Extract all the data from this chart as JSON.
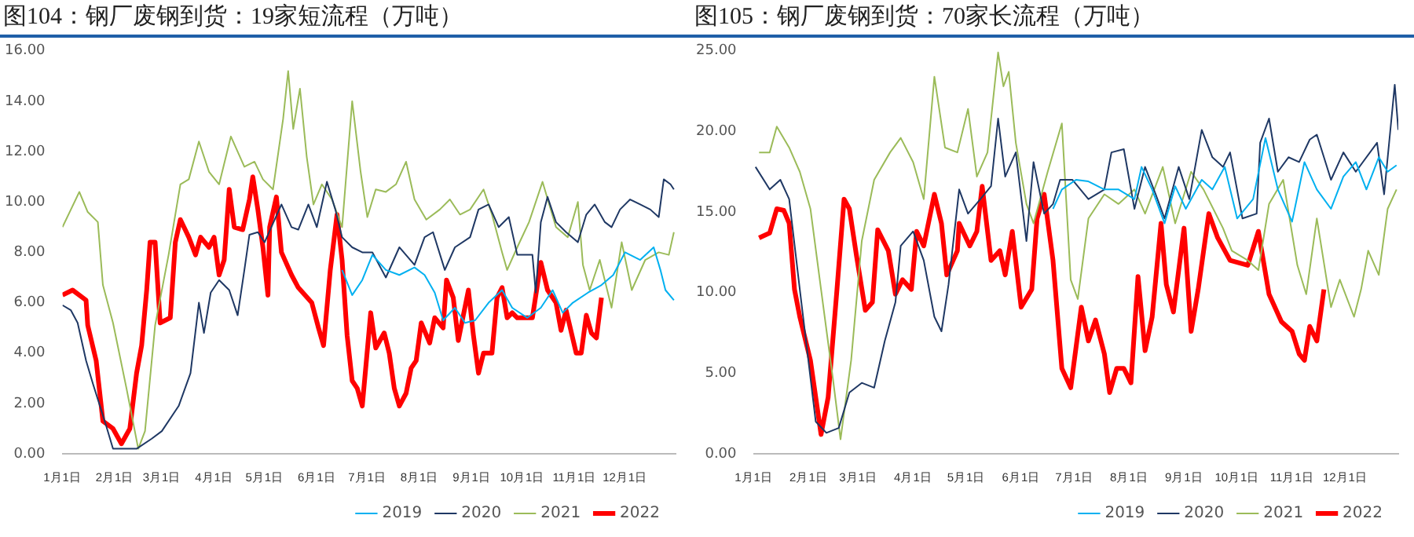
{
  "chart_data": [
    {
      "type": "line",
      "title": "图104：钢厂废钢到货：19家短流程（万吨）",
      "xlim": [
        "--01-01",
        "--12-31"
      ],
      "xticks": [
        {
          "value": "--01-01",
          "label": "1月1日"
        },
        {
          "value": "--02-01",
          "label": "2月1日"
        },
        {
          "value": "--03-01",
          "label": "3月1日"
        },
        {
          "value": "--04-01",
          "label": "4月1日"
        },
        {
          "value": "--05-01",
          "label": "5月1日"
        },
        {
          "value": "--06-01",
          "label": "6月1日"
        },
        {
          "value": "--07-01",
          "label": "7月1日"
        },
        {
          "value": "--08-01",
          "label": "8月1日"
        },
        {
          "value": "--09-01",
          "label": "9月1日"
        },
        {
          "value": "--10-01",
          "label": "10月1日"
        },
        {
          "value": "--11-01",
          "label": "11月1日"
        },
        {
          "value": "--12-01",
          "label": "12月1日"
        }
      ],
      "ylim": [
        0,
        16
      ],
      "yticks": [
        {
          "value": 0,
          "label": "0.00"
        },
        {
          "value": 2,
          "label": "2.00"
        },
        {
          "value": 4,
          "label": "4.00"
        },
        {
          "value": 6,
          "label": "6.00"
        },
        {
          "value": 8,
          "label": "8.00"
        },
        {
          "value": 10,
          "label": "10.00"
        },
        {
          "value": 12,
          "label": "12.00"
        },
        {
          "value": 14,
          "label": "14.00"
        },
        {
          "value": 16,
          "label": "16.00"
        }
      ],
      "grid": false,
      "legend": "bottom right",
      "marker": "none",
      "line_style": "solid",
      "series": [
        {
          "name": "2019",
          "color": "#00b0f0",
          "x": [
            "--06-16",
            "--06-22",
            "--06-28",
            "--07-04",
            "--07-12",
            "--07-20",
            "--07-29",
            "--08-04",
            "--08-10",
            "--08-15",
            "--08-22",
            "--08-28",
            "--09-03",
            "--09-11",
            "--09-19",
            "--09-25",
            "--10-04",
            "--10-12",
            "--10-19",
            "--10-25",
            "--10-31",
            "--11-09",
            "--11-17",
            "--11-24",
            "--12-01",
            "--12-10",
            "--12-18",
            "--12-22",
            "--12-25",
            "--12-30"
          ],
          "values": [
            7.3,
            6.3,
            6.9,
            7.9,
            7.3,
            7.1,
            7.4,
            7.1,
            6.4,
            5.3,
            5.8,
            5.2,
            5.3,
            6.0,
            6.5,
            5.8,
            5.4,
            5.8,
            6.5,
            5.6,
            6.0,
            6.4,
            6.7,
            7.1,
            8.0,
            7.7,
            8.2,
            7.3,
            6.5,
            6.1
          ]
        },
        {
          "name": "2020",
          "color": "#1f3864",
          "x": [
            "--01-01",
            "--01-06",
            "--01-10",
            "--01-15",
            "--01-19",
            "--01-27",
            "--01-31",
            "--02-07",
            "--02-14",
            "--02-23",
            "--03-01",
            "--03-11",
            "--03-18",
            "--03-23",
            "--03-26",
            "--03-30",
            "--04-04",
            "--04-10",
            "--04-15",
            "--04-19",
            "--04-22",
            "--04-27",
            "--05-01",
            "--05-11",
            "--05-17",
            "--05-21",
            "--05-27",
            "--06-01",
            "--06-07",
            "--06-12",
            "--06-16",
            "--06-22",
            "--06-28",
            "--07-04",
            "--07-12",
            "--07-20",
            "--07-29",
            "--08-04",
            "--08-09",
            "--08-16",
            "--08-22",
            "--08-31",
            "--09-05",
            "--09-11",
            "--09-17",
            "--09-23",
            "--09-28",
            "--10-07",
            "--10-09",
            "--10-12",
            "--10-16",
            "--10-21",
            "--10-27",
            "--11-03",
            "--11-08",
            "--11-13",
            "--11-19",
            "--11-23",
            "--11-28",
            "--12-04",
            "--12-10",
            "--12-16",
            "--12-21",
            "--12-24",
            "--12-28",
            "--12-30"
          ],
          "values": [
            5.9,
            5.7,
            5.2,
            3.7,
            2.8,
            1.1,
            0.2,
            0.2,
            0.2,
            0.6,
            0.9,
            1.9,
            3.2,
            6.0,
            4.8,
            6.4,
            6.9,
            6.5,
            5.5,
            7.3,
            8.7,
            8.8,
            8.4,
            9.9,
            9.0,
            8.9,
            9.9,
            9.0,
            10.8,
            9.7,
            8.6,
            8.2,
            8.0,
            8.0,
            7.0,
            8.2,
            7.5,
            8.6,
            8.8,
            7.3,
            8.2,
            8.6,
            9.7,
            9.9,
            9.0,
            9.4,
            7.9,
            7.9,
            6.4,
            9.2,
            10.2,
            9.2,
            8.8,
            8.4,
            9.5,
            9.9,
            9.2,
            9.0,
            9.7,
            10.1,
            9.9,
            9.7,
            9.4,
            10.9,
            10.7,
            10.5
          ]
        },
        {
          "name": "2021",
          "color": "#9bbb59",
          "x": [
            "--01-01",
            "--01-06",
            "--01-11",
            "--01-16",
            "--01-22",
            "--01-25",
            "--01-31",
            "--02-08",
            "--02-15",
            "--02-19",
            "--02-25",
            "--03-05",
            "--03-12",
            "--03-17",
            "--03-23",
            "--03-29",
            "--04-04",
            "--04-11",
            "--04-19",
            "--04-25",
            "--04-30",
            "--05-06",
            "--05-12",
            "--05-15",
            "--05-18",
            "--05-22",
            "--05-26",
            "--05-30",
            "--06-04",
            "--06-10",
            "--06-16",
            "--06-22",
            "--06-27",
            "--07-01",
            "--07-06",
            "--07-12",
            "--07-18",
            "--07-24",
            "--07-29",
            "--08-05",
            "--08-13",
            "--08-19",
            "--08-25",
            "--08-31",
            "--09-08",
            "--09-13",
            "--09-19",
            "--09-22",
            "--09-28",
            "--10-05",
            "--10-13",
            "--10-21",
            "--10-28",
            "--11-03",
            "--11-06",
            "--11-10",
            "--11-16",
            "--11-23",
            "--11-29",
            "--12-05",
            "--12-13",
            "--12-21",
            "--12-27",
            "--12-30"
          ],
          "values": [
            9.0,
            9.7,
            10.4,
            9.6,
            9.2,
            6.7,
            5.2,
            2.6,
            0.2,
            0.9,
            5.1,
            7.9,
            10.7,
            10.9,
            12.4,
            11.2,
            10.7,
            12.6,
            11.4,
            11.6,
            10.9,
            10.5,
            13.3,
            15.2,
            12.9,
            14.5,
            11.8,
            9.9,
            10.7,
            10.1,
            9.0,
            14.0,
            11.2,
            9.4,
            10.5,
            10.4,
            10.7,
            11.6,
            10.1,
            9.3,
            9.7,
            10.1,
            9.5,
            9.7,
            10.5,
            9.5,
            8.0,
            7.3,
            8.2,
            9.2,
            10.8,
            9.0,
            8.6,
            10.0,
            7.5,
            6.5,
            7.7,
            5.8,
            8.4,
            6.5,
            7.7,
            8.0,
            7.9,
            8.8
          ]
        },
        {
          "name": "2022",
          "color": "#ff0000",
          "x": [
            "--01-01",
            "--01-07",
            "--01-15",
            "--01-16",
            "--01-21",
            "--01-25",
            "--01-31",
            "--02-05",
            "--02-10",
            "--02-14",
            "--02-17",
            "--02-20",
            "--02-22",
            "--02-25",
            "--02-28",
            "--03-06",
            "--03-09",
            "--03-12",
            "--03-17",
            "--03-21",
            "--03-24",
            "--03-29",
            "--04-01",
            "--04-04",
            "--04-07",
            "--04-10",
            "--04-13",
            "--04-18",
            "--04-22",
            "--04-24",
            "--04-27",
            "--04-30",
            "--05-03",
            "--05-04",
            "--05-08",
            "--05-11",
            "--05-17",
            "--05-21",
            "--05-29",
            "--06-02",
            "--06-05",
            "--06-09",
            "--06-13",
            "--06-16",
            "--06-19",
            "--06-22",
            "--06-25",
            "--06-28",
            "--07-03",
            "--07-06",
            "--07-11",
            "--07-14",
            "--07-17",
            "--07-20",
            "--07-24",
            "--07-27",
            "--07-30",
            "--08-02",
            "--08-07",
            "--08-10",
            "--08-15",
            "--08-17",
            "--08-21",
            "--08-24",
            "--08-30",
            "--09-02",
            "--09-05",
            "--09-08",
            "--09-13",
            "--09-16",
            "--09-19",
            "--09-22",
            "--09-25",
            "--09-28",
            "--10-07",
            "--10-12",
            "--10-16",
            "--10-21",
            "--10-24",
            "--10-27",
            "--11-02",
            "--11-05",
            "--11-08",
            "--11-11",
            "--11-14",
            "--11-17"
          ],
          "values": [
            6.3,
            6.5,
            6.1,
            5.1,
            3.7,
            1.3,
            1.0,
            0.4,
            1.0,
            3.2,
            4.3,
            6.5,
            8.4,
            8.4,
            5.2,
            5.4,
            8.4,
            9.3,
            8.6,
            7.9,
            8.6,
            8.2,
            8.6,
            7.1,
            7.7,
            10.5,
            9.0,
            8.9,
            10.1,
            11.0,
            9.7,
            8.2,
            6.3,
            9.0,
            10.2,
            8.0,
            7.1,
            6.6,
            6.0,
            5.0,
            4.3,
            7.3,
            9.5,
            7.7,
            4.7,
            2.9,
            2.6,
            1.9,
            5.6,
            4.2,
            4.8,
            4.0,
            2.6,
            1.9,
            2.4,
            3.4,
            3.7,
            5.2,
            4.4,
            5.4,
            5.0,
            6.9,
            6.2,
            4.5,
            6.5,
            4.7,
            3.2,
            4.0,
            4.0,
            6.2,
            6.6,
            5.4,
            5.6,
            5.4,
            5.4,
            7.6,
            6.5,
            6.0,
            4.9,
            5.7,
            4.0,
            4.0,
            5.5,
            4.8,
            4.6,
            6.2
          ]
        }
      ]
    },
    {
      "type": "line",
      "title": "图105：钢厂废钢到货：70家长流程（万吨）",
      "xlim": [
        "--01-01",
        "--12-31"
      ],
      "xticks": [
        {
          "value": "--01-01",
          "label": "1月1日"
        },
        {
          "value": "--02-01",
          "label": "2月1日"
        },
        {
          "value": "--03-01",
          "label": "3月1日"
        },
        {
          "value": "--04-01",
          "label": "4月1日"
        },
        {
          "value": "--05-01",
          "label": "5月1日"
        },
        {
          "value": "--06-01",
          "label": "6月1日"
        },
        {
          "value": "--07-01",
          "label": "7月1日"
        },
        {
          "value": "--08-01",
          "label": "8月1日"
        },
        {
          "value": "--09-01",
          "label": "9月1日"
        },
        {
          "value": "--10-01",
          "label": "10月1日"
        },
        {
          "value": "--11-01",
          "label": "11月1日"
        },
        {
          "value": "--12-01",
          "label": "12月1日"
        }
      ],
      "ylim": [
        0,
        25
      ],
      "yticks": [
        {
          "value": 0,
          "label": "0.00"
        },
        {
          "value": 5,
          "label": "5.00"
        },
        {
          "value": 10,
          "label": "10.00"
        },
        {
          "value": 15,
          "label": "15.00"
        },
        {
          "value": 20,
          "label": "20.00"
        },
        {
          "value": 25,
          "label": "25.00"
        }
      ],
      "grid": false,
      "legend": "bottom right",
      "marker": "none",
      "line_style": "solid",
      "series": [
        {
          "name": "2019",
          "color": "#00b0f0",
          "x": [
            "--06-19",
            "--06-24",
            "--07-02",
            "--07-09",
            "--07-18",
            "--07-26",
            "--08-04",
            "--08-08",
            "--08-14",
            "--08-21",
            "--08-27",
            "--09-02",
            "--09-11",
            "--09-17",
            "--09-24",
            "--10-01",
            "--10-10",
            "--10-17",
            "--10-24",
            "--11-01",
            "--11-08",
            "--11-15",
            "--11-23",
            "--11-30",
            "--12-07",
            "--12-13",
            "--12-20",
            "--12-25",
            "--12-30"
          ],
          "values": [
            15.2,
            16.4,
            17.0,
            16.9,
            16.4,
            16.4,
            15.8,
            17.8,
            16.4,
            14.3,
            16.6,
            15.2,
            17.0,
            16.4,
            17.8,
            14.6,
            15.8,
            19.6,
            16.4,
            14.4,
            18.1,
            16.4,
            15.2,
            17.2,
            18.1,
            16.4,
            18.4,
            17.5,
            17.9
          ]
        },
        {
          "name": "2020",
          "color": "#1f3864",
          "x": [
            "--01-02",
            "--01-10",
            "--01-16",
            "--01-21",
            "--01-27",
            "--02-05",
            "--02-11",
            "--02-18",
            "--02-24",
            "--03-03",
            "--03-10",
            "--03-16",
            "--03-22",
            "--03-25",
            "--04-01",
            "--04-07",
            "--04-13",
            "--04-17",
            "--04-21",
            "--04-27",
            "--05-02",
            "--05-09",
            "--05-15",
            "--05-19",
            "--05-23",
            "--05-29",
            "--06-04",
            "--06-08",
            "--06-14",
            "--06-19",
            "--06-23",
            "--06-30",
            "--07-09",
            "--07-18",
            "--07-22",
            "--07-29",
            "--08-04",
            "--08-10",
            "--08-16",
            "--08-21",
            "--08-29",
            "--09-04",
            "--09-11",
            "--09-17",
            "--09-23",
            "--09-27",
            "--10-04",
            "--10-12",
            "--10-14",
            "--10-19",
            "--10-24",
            "--10-30",
            "--11-05",
            "--11-11",
            "--11-15",
            "--11-23",
            "--11-30",
            "--12-07",
            "--12-19",
            "--12-23",
            "--12-29",
            "--12-31"
          ],
          "values": [
            17.8,
            16.4,
            17.0,
            15.8,
            10.2,
            2.0,
            1.3,
            1.6,
            3.8,
            4.4,
            4.1,
            7.0,
            9.4,
            12.9,
            13.8,
            12.0,
            8.5,
            7.6,
            10.5,
            16.4,
            14.9,
            15.8,
            16.6,
            20.8,
            17.2,
            18.7,
            13.2,
            18.1,
            14.9,
            15.5,
            17.0,
            17.0,
            15.8,
            16.4,
            18.7,
            18.9,
            15.2,
            17.8,
            16.1,
            14.6,
            17.8,
            15.8,
            20.1,
            18.4,
            17.8,
            18.7,
            14.6,
            14.9,
            19.3,
            20.8,
            17.5,
            18.4,
            18.1,
            19.5,
            19.8,
            17.0,
            18.7,
            17.5,
            19.3,
            16.1,
            22.9,
            20.1
          ]
        },
        {
          "name": "2021",
          "color": "#9bbb59",
          "x": [
            "--01-04",
            "--01-10",
            "--01-14",
            "--01-21",
            "--01-27",
            "--02-02",
            "--02-08",
            "--02-15",
            "--02-19",
            "--02-25",
            "--03-03",
            "--03-10",
            "--03-19",
            "--03-25",
            "--04-01",
            "--04-07",
            "--04-13",
            "--04-19",
            "--04-26",
            "--05-02",
            "--05-07",
            "--05-13",
            "--05-19",
            "--05-22",
            "--05-25",
            "--05-29",
            "--06-04",
            "--06-08",
            "--06-16",
            "--06-24",
            "--06-29",
            "--07-03",
            "--07-09",
            "--07-18",
            "--07-26",
            "--08-04",
            "--08-10",
            "--08-20",
            "--08-27",
            "--09-05",
            "--09-12",
            "--09-23",
            "--09-28",
            "--10-07",
            "--10-13",
            "--10-19",
            "--10-27",
            "--11-04",
            "--11-09",
            "--11-15",
            "--11-23",
            "--11-28",
            "--12-06",
            "--12-10",
            "--12-14",
            "--12-20",
            "--12-25",
            "--12-30"
          ],
          "values": [
            18.7,
            18.7,
            20.3,
            19.0,
            17.5,
            15.2,
            10.2,
            4.4,
            0.9,
            5.8,
            13.2,
            17.0,
            18.7,
            19.6,
            18.1,
            15.8,
            23.4,
            19.0,
            18.7,
            21.4,
            17.2,
            18.7,
            24.9,
            22.8,
            23.7,
            19.3,
            15.5,
            14.3,
            17.5,
            20.5,
            10.8,
            9.6,
            14.6,
            16.1,
            15.5,
            16.4,
            14.9,
            17.8,
            14.3,
            17.5,
            16.4,
            14.0,
            12.6,
            12.0,
            11.4,
            15.5,
            17.0,
            11.7,
            9.9,
            14.6,
            9.1,
            10.8,
            8.5,
            10.2,
            12.6,
            11.1,
            15.2,
            16.4
          ]
        },
        {
          "name": "2022",
          "color": "#ff0000",
          "x": [
            "--01-04",
            "--01-10",
            "--01-14",
            "--01-18",
            "--01-21",
            "--01-24",
            "--01-27",
            "--02-02",
            "--02-08",
            "--02-12",
            "--02-17",
            "--02-21",
            "--02-24",
            "--02-28",
            "--03-05",
            "--03-09",
            "--03-12",
            "--03-18",
            "--03-22",
            "--03-26",
            "--03-31",
            "--04-03",
            "--04-07",
            "--04-13",
            "--04-17",
            "--04-20",
            "--04-26",
            "--04-27",
            "--05-03",
            "--05-07",
            "--05-10",
            "--05-15",
            "--05-20",
            "--05-23",
            "--05-27",
            "--06-01",
            "--06-07",
            "--06-10",
            "--06-14",
            "--06-19",
            "--06-24",
            "--06-29",
            "--07-05",
            "--07-09",
            "--07-13",
            "--07-18",
            "--07-21",
            "--07-25",
            "--07-29",
            "--08-02",
            "--08-06",
            "--08-10",
            "--08-14",
            "--08-19",
            "--08-22",
            "--08-26",
            "--09-01",
            "--09-05",
            "--09-09",
            "--09-15",
            "--09-20",
            "--09-27",
            "--10-07",
            "--10-13",
            "--10-19",
            "--10-26",
            "--11-01",
            "--11-05",
            "--11-08",
            "--11-11",
            "--11-15",
            "--11-19"
          ],
          "values": [
            13.4,
            13.7,
            15.2,
            15.1,
            14.3,
            10.2,
            8.5,
            5.8,
            1.2,
            3.5,
            10.2,
            15.8,
            15.2,
            12.3,
            8.9,
            9.4,
            13.9,
            12.6,
            9.9,
            10.8,
            10.2,
            13.8,
            12.9,
            16.1,
            14.3,
            11.1,
            12.6,
            14.3,
            12.9,
            13.8,
            16.6,
            12.0,
            12.6,
            11.1,
            13.8,
            9.1,
            10.2,
            14.6,
            16.1,
            12.0,
            5.3,
            4.1,
            9.1,
            7.0,
            8.3,
            6.2,
            3.8,
            5.3,
            5.3,
            4.4,
            11.0,
            6.4,
            8.5,
            14.3,
            10.5,
            8.8,
            14.0,
            7.6,
            10.2,
            14.9,
            13.4,
            12.0,
            11.7,
            13.8,
            9.9,
            8.2,
            7.6,
            6.2,
            5.8,
            7.9,
            7.0,
            10.2
          ]
        }
      ]
    }
  ]
}
